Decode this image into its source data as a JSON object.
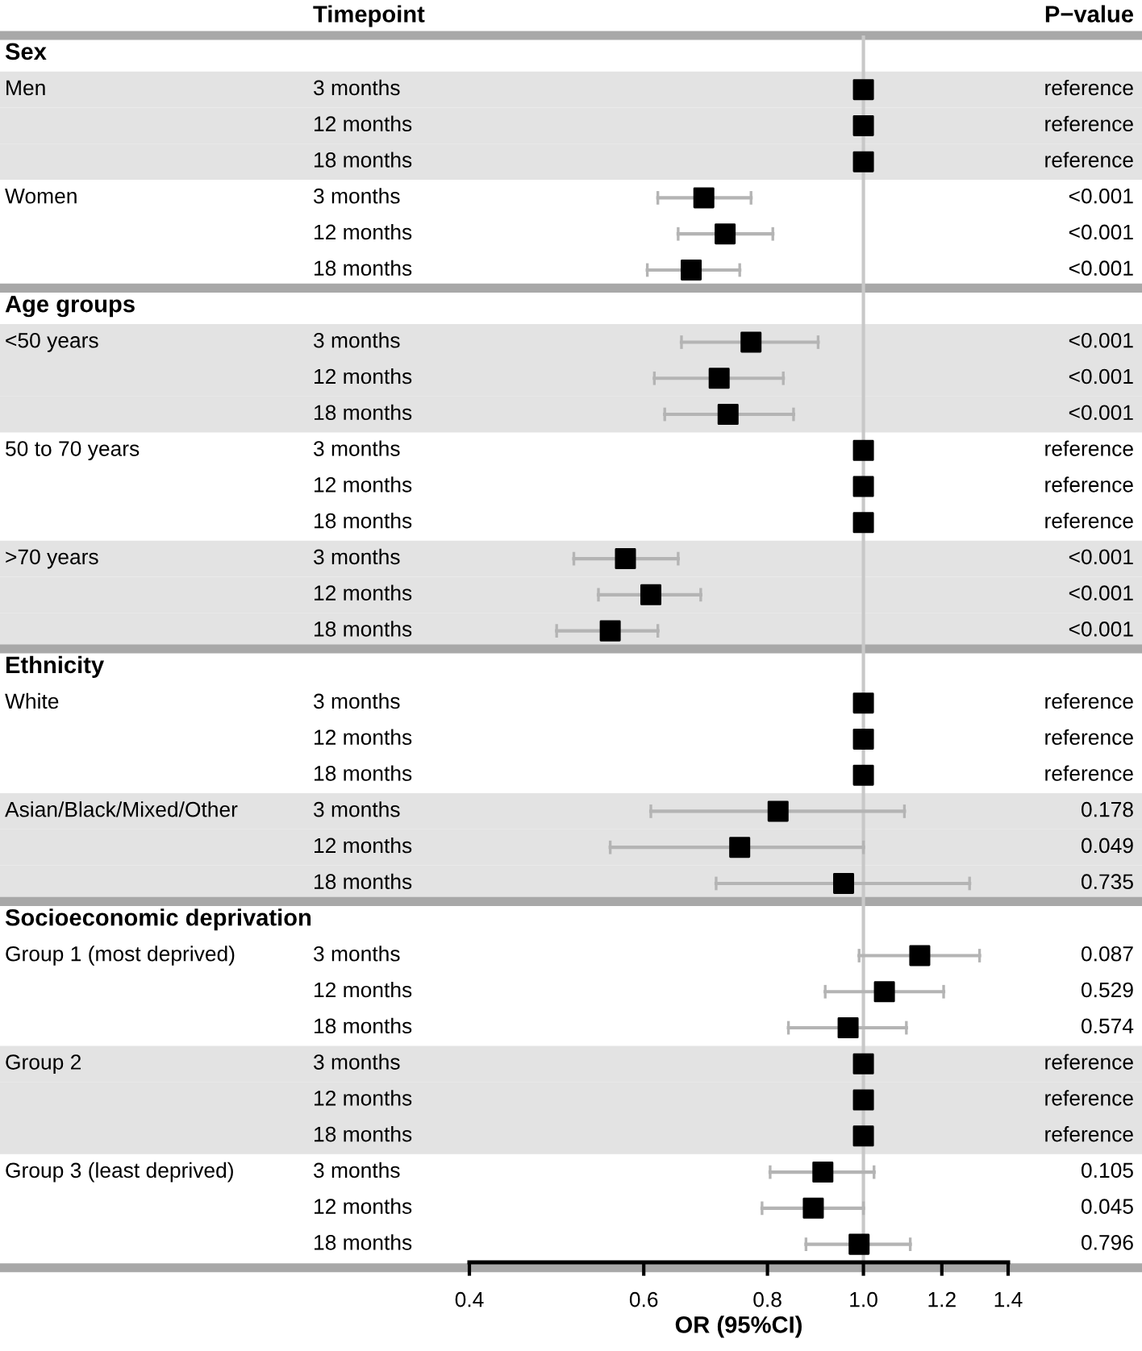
{
  "chart_data": {
    "type": "scatter",
    "orientation": "horizontal",
    "log": "x",
    "marker": "square",
    "color": "#000000",
    "xlabel": "OR (95%CI)",
    "annotations": [
      "Timepoint",
      "P−value",
      "reference",
      "reference",
      "reference",
      "<0.001",
      "<0.001",
      "<0.001",
      "<0.001",
      "<0.001",
      "<0.001",
      "reference",
      "reference",
      "reference",
      "<0.001",
      "<0.001",
      "<0.001",
      "reference",
      "reference",
      "reference",
      "0.178",
      "0.049",
      "0.735",
      "0.087",
      "0.529",
      "0.574",
      "reference",
      "reference",
      "reference",
      "0.105",
      "0.045",
      "0.796"
    ],
    "categories": [
      null,
      "3 months",
      "12 months",
      "18 months",
      "3 months",
      "12 months",
      "18 months",
      null,
      "3 months",
      "12 months",
      "18 months",
      "3 months",
      "12 months",
      "18 months",
      "3 months",
      "12 months",
      "18 months",
      null,
      "3 months",
      "12 months",
      "18 months",
      "3 months",
      "12 months",
      "18 months",
      null,
      "3 months",
      "12 months",
      "18 months",
      "3 months",
      "12 months",
      "18 months",
      "3 months",
      "12 months",
      "18 months"
    ],
    "y2_categories": [
      "Sex",
      "Men",
      null,
      null,
      "Women",
      null,
      null,
      "Age groups",
      "<50 years",
      null,
      null,
      "50 to 70 years",
      null,
      null,
      ">70 years",
      null,
      null,
      "Ethnicity",
      "White",
      null,
      null,
      "Asian/Black/Mixed/Other",
      null,
      null,
      "Socioeconomic deprivation",
      "Group 1 (most deprived)",
      null,
      null,
      "Group 2",
      null,
      null,
      "Group 3 (least deprived)",
      null,
      null
    ],
    "values": [
      null,
      1,
      1,
      1,
      0.69,
      0.725,
      0.67,
      null,
      0.77,
      0.715,
      0.73,
      1,
      1,
      1,
      0.575,
      0.61,
      0.555,
      null,
      1,
      1,
      1,
      0.82,
      0.75,
      0.955,
      null,
      1.14,
      1.05,
      0.965,
      1,
      1,
      1,
      0.91,
      0.89,
      0.99
    ],
    "errors": [
      null,
      null,
      null,
      null,
      [
        0.62,
        0.77
      ],
      [
        0.65,
        0.81
      ],
      [
        0.605,
        0.75
      ],
      null,
      [
        0.655,
        0.9
      ],
      [
        0.615,
        0.83
      ],
      [
        0.63,
        0.85
      ],
      null,
      null,
      null,
      [
        0.51,
        0.65
      ],
      [
        0.54,
        0.685
      ],
      [
        0.49,
        0.62
      ],
      null,
      null,
      null,
      null,
      [
        0.61,
        1.1
      ],
      [
        0.555,
        1.0
      ],
      [
        0.71,
        1.28
      ],
      null,
      [
        0.99,
        1.31
      ],
      [
        0.915,
        1.205
      ],
      [
        0.84,
        1.105
      ],
      null,
      null,
      null,
      [
        0.805,
        1.025
      ],
      [
        0.79,
        1.0
      ],
      [
        0.875,
        1.115
      ]
    ],
    "xlim": [
      0.4,
      1.4
    ],
    "xticks": [
      0.4,
      0.6,
      0.8,
      {
        "value": 1,
        "label": "1.0"
      },
      1.2,
      1.4
    ],
    "ref_lines": [
      {
        "axis": "x",
        "value": 1,
        "color": "#c8c8c8"
      }
    ]
  }
}
